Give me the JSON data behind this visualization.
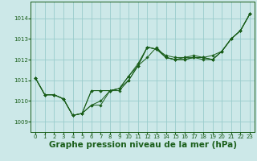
{
  "background_color": "#cce8e8",
  "plot_bg_color": "#cce8e8",
  "grid_color": "#99cccc",
  "line_color": "#1a5e1a",
  "marker_color": "#1a5e1a",
  "xlabel": "Graphe pression niveau de la mer (hPa)",
  "xlabel_fontsize": 7.5,
  "ylim": [
    1008.5,
    1014.8
  ],
  "xlim": [
    -0.5,
    23.5
  ],
  "yticks": [
    1009,
    1010,
    1011,
    1012,
    1013,
    1014
  ],
  "xticks": [
    0,
    1,
    2,
    3,
    4,
    5,
    6,
    7,
    8,
    9,
    10,
    11,
    12,
    13,
    14,
    15,
    16,
    17,
    18,
    19,
    20,
    21,
    22,
    23
  ],
  "tick_fontsize": 5.0,
  "series": [
    [
      1011.1,
      1010.3,
      1010.3,
      1010.1,
      1009.3,
      1009.4,
      1009.8,
      1009.8,
      1010.5,
      1010.5,
      1011.0,
      1011.7,
      1012.1,
      1012.6,
      1012.1,
      1012.0,
      1012.0,
      1012.1,
      1012.0,
      1012.0,
      1012.4,
      1013.0,
      1013.4,
      1014.2
    ],
    [
      1011.1,
      1010.3,
      1010.3,
      1010.1,
      1009.3,
      1009.4,
      1010.5,
      1010.5,
      1010.5,
      1010.6,
      1011.0,
      1011.7,
      1012.6,
      1012.5,
      1012.1,
      1012.0,
      1012.0,
      1012.1,
      1012.1,
      1012.0,
      1012.4,
      1013.0,
      1013.4,
      1014.2
    ],
    [
      1011.1,
      1010.3,
      1010.3,
      1010.1,
      1009.3,
      1009.4,
      1010.5,
      1010.5,
      1010.5,
      1010.6,
      1011.2,
      1011.7,
      1012.6,
      1012.5,
      1012.1,
      1012.0,
      1012.1,
      1012.1,
      1012.1,
      1012.0,
      1012.4,
      1013.0,
      1013.4,
      1014.2
    ],
    [
      1011.1,
      1010.3,
      1010.3,
      1010.1,
      1009.3,
      1009.4,
      1009.8,
      1010.0,
      1010.5,
      1010.6,
      1011.2,
      1011.8,
      1012.6,
      1012.5,
      1012.2,
      1012.1,
      1012.1,
      1012.2,
      1012.1,
      1012.2,
      1012.4,
      1013.0,
      1013.4,
      1014.2
    ]
  ]
}
